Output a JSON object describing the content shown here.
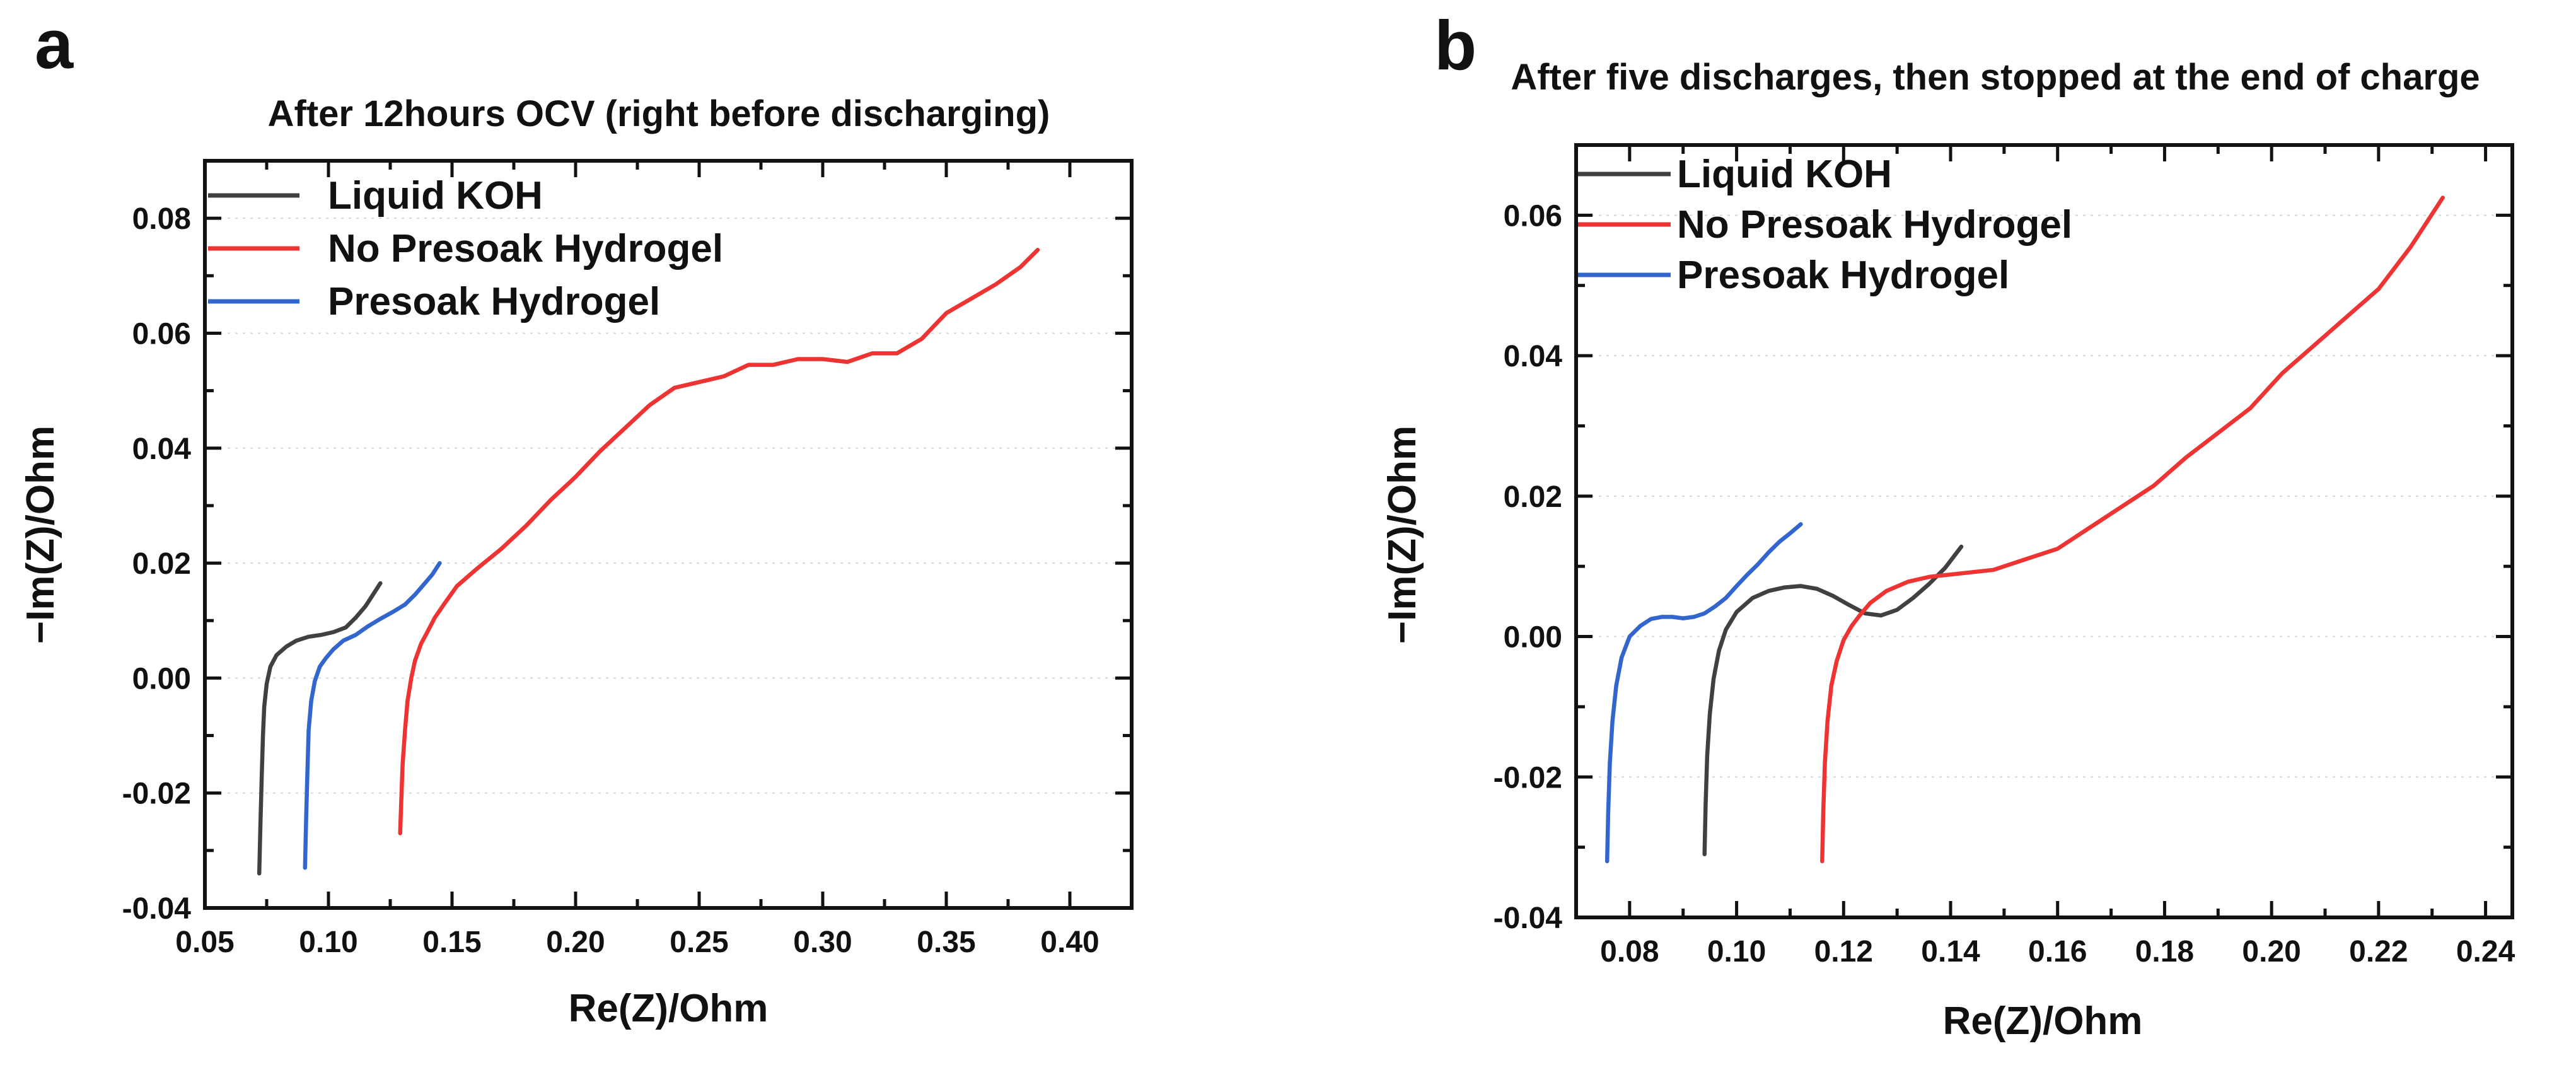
{
  "chart_data": [
    {
      "type": "line",
      "panel": "a",
      "title": "After 12hours OCV (right before discharging)",
      "xlabel": "Re(Z)/Ohm",
      "ylabel": "−Im(Z)/Ohm",
      "xlim": [
        0.05,
        0.425
      ],
      "ylim": [
        -0.04,
        0.09
      ],
      "xticks": [
        0.05,
        0.1,
        0.15,
        0.2,
        0.25,
        0.3,
        0.35,
        0.4
      ],
      "xtick_labels": [
        "0.05",
        "0.10",
        "0.15",
        "0.20",
        "0.25",
        "0.30",
        "0.35",
        "0.40"
      ],
      "yticks": [
        -0.04,
        -0.02,
        0.0,
        0.02,
        0.04,
        0.06,
        0.08
      ],
      "ytick_labels": [
        "-0.04",
        "-0.02",
        "0.00",
        "0.02",
        "0.04",
        "0.06",
        "0.08"
      ],
      "grid": true,
      "legend_position": "top-left",
      "series": [
        {
          "name": "Liquid KOH",
          "color": "#404040",
          "x": [
            0.072,
            0.0725,
            0.073,
            0.0735,
            0.074,
            0.075,
            0.0765,
            0.079,
            0.083,
            0.087,
            0.092,
            0.097,
            0.102,
            0.107,
            0.111,
            0.115,
            0.118,
            0.121
          ],
          "y": [
            -0.034,
            -0.025,
            -0.017,
            -0.01,
            -0.005,
            -0.001,
            0.002,
            0.004,
            0.0055,
            0.0065,
            0.0072,
            0.0075,
            0.008,
            0.0088,
            0.0105,
            0.0125,
            0.0145,
            0.0165
          ]
        },
        {
          "name": "No Presoak Hydrogel",
          "color": "#ee3333",
          "x": [
            0.129,
            0.1295,
            0.13,
            0.131,
            0.132,
            0.1335,
            0.135,
            0.1375,
            0.14,
            0.143,
            0.147,
            0.152,
            0.16,
            0.17,
            0.18,
            0.19,
            0.2,
            0.21,
            0.22,
            0.23,
            0.24,
            0.25,
            0.26,
            0.27,
            0.28,
            0.29,
            0.3,
            0.31,
            0.32,
            0.33,
            0.34,
            0.35,
            0.36,
            0.37,
            0.38,
            0.387
          ],
          "y": [
            -0.027,
            -0.021,
            -0.015,
            -0.009,
            -0.004,
            0.0,
            0.003,
            0.006,
            0.008,
            0.0105,
            0.013,
            0.016,
            0.019,
            0.0225,
            0.0265,
            0.031,
            0.035,
            0.0395,
            0.0435,
            0.0475,
            0.0505,
            0.0515,
            0.0525,
            0.0545,
            0.0545,
            0.0555,
            0.0555,
            0.055,
            0.0565,
            0.0565,
            0.059,
            0.0635,
            0.066,
            0.0685,
            0.0715,
            0.0745
          ]
        },
        {
          "name": "Presoak Hydrogel",
          "color": "#3366cc",
          "x": [
            0.0905,
            0.091,
            0.0915,
            0.092,
            0.093,
            0.0945,
            0.0965,
            0.099,
            0.102,
            0.106,
            0.111,
            0.116,
            0.121,
            0.126,
            0.131,
            0.135,
            0.139,
            0.142,
            0.145
          ],
          "y": [
            -0.033,
            -0.024,
            -0.016,
            -0.009,
            -0.004,
            -0.0005,
            0.002,
            0.0035,
            0.005,
            0.0065,
            0.0075,
            0.009,
            0.0103,
            0.0115,
            0.0128,
            0.0145,
            0.0165,
            0.018,
            0.02
          ]
        }
      ]
    },
    {
      "type": "line",
      "panel": "b",
      "title": "After five discharges, then stopped at the end of charge",
      "xlabel": "Re(Z)/Ohm",
      "ylabel": "−Im(Z)/Ohm",
      "xlim": [
        0.07,
        0.245
      ],
      "ylim": [
        -0.04,
        0.07
      ],
      "xticks": [
        0.08,
        0.1,
        0.12,
        0.14,
        0.16,
        0.18,
        0.2,
        0.22,
        0.24
      ],
      "xtick_labels": [
        "0.08",
        "0.10",
        "0.12",
        "0.14",
        "0.16",
        "0.18",
        "0.20",
        "0.22",
        "0.24"
      ],
      "yticks": [
        -0.04,
        -0.02,
        0.0,
        0.02,
        0.04,
        0.06
      ],
      "ytick_labels": [
        "-0.04",
        "-0.02",
        "0.00",
        "0.02",
        "0.04",
        "0.06"
      ],
      "grid": true,
      "legend_position": "top-left",
      "series": [
        {
          "name": "Liquid KOH",
          "color": "#404040",
          "x": [
            0.094,
            0.0942,
            0.0945,
            0.095,
            0.0957,
            0.0967,
            0.098,
            0.1,
            0.103,
            0.106,
            0.109,
            0.112,
            0.115,
            0.118,
            0.121,
            0.124,
            0.127,
            0.13,
            0.133,
            0.136,
            0.139,
            0.142
          ],
          "y": [
            -0.031,
            -0.024,
            -0.017,
            -0.011,
            -0.006,
            -0.002,
            0.001,
            0.0035,
            0.0055,
            0.0065,
            0.007,
            0.0072,
            0.0068,
            0.0058,
            0.0045,
            0.0033,
            0.003,
            0.0038,
            0.0055,
            0.0075,
            0.0098,
            0.0128
          ]
        },
        {
          "name": "No Presoak Hydrogel",
          "color": "#ee3333",
          "x": [
            0.116,
            0.1162,
            0.1165,
            0.117,
            0.1177,
            0.1187,
            0.12,
            0.1215,
            0.123,
            0.125,
            0.128,
            0.132,
            0.136,
            0.142,
            0.148,
            0.154,
            0.16,
            0.166,
            0.172,
            0.178,
            0.184,
            0.19,
            0.196,
            0.202,
            0.208,
            0.214,
            0.22,
            0.226,
            0.232
          ],
          "y": [
            -0.032,
            -0.025,
            -0.018,
            -0.012,
            -0.007,
            -0.0035,
            -0.0005,
            0.0015,
            0.003,
            0.0048,
            0.0065,
            0.0078,
            0.0085,
            0.009,
            0.0095,
            0.011,
            0.0125,
            0.0155,
            0.0185,
            0.0215,
            0.0255,
            0.029,
            0.0325,
            0.0375,
            0.0415,
            0.0455,
            0.0495,
            0.0555,
            0.0625
          ]
        },
        {
          "name": "Presoak Hydrogel",
          "color": "#3366cc",
          "x": [
            0.0758,
            0.076,
            0.0763,
            0.0768,
            0.0775,
            0.0785,
            0.08,
            0.082,
            0.084,
            0.086,
            0.088,
            0.09,
            0.092,
            0.094,
            0.096,
            0.098,
            0.1,
            0.102,
            0.104,
            0.106,
            0.108,
            0.11,
            0.112
          ],
          "y": [
            -0.032,
            -0.025,
            -0.018,
            -0.012,
            -0.007,
            -0.003,
            0.0,
            0.0015,
            0.0025,
            0.0028,
            0.0028,
            0.0026,
            0.0028,
            0.0033,
            0.0043,
            0.0055,
            0.0072,
            0.0088,
            0.0103,
            0.012,
            0.0135,
            0.0147,
            0.016
          ]
        }
      ]
    }
  ]
}
